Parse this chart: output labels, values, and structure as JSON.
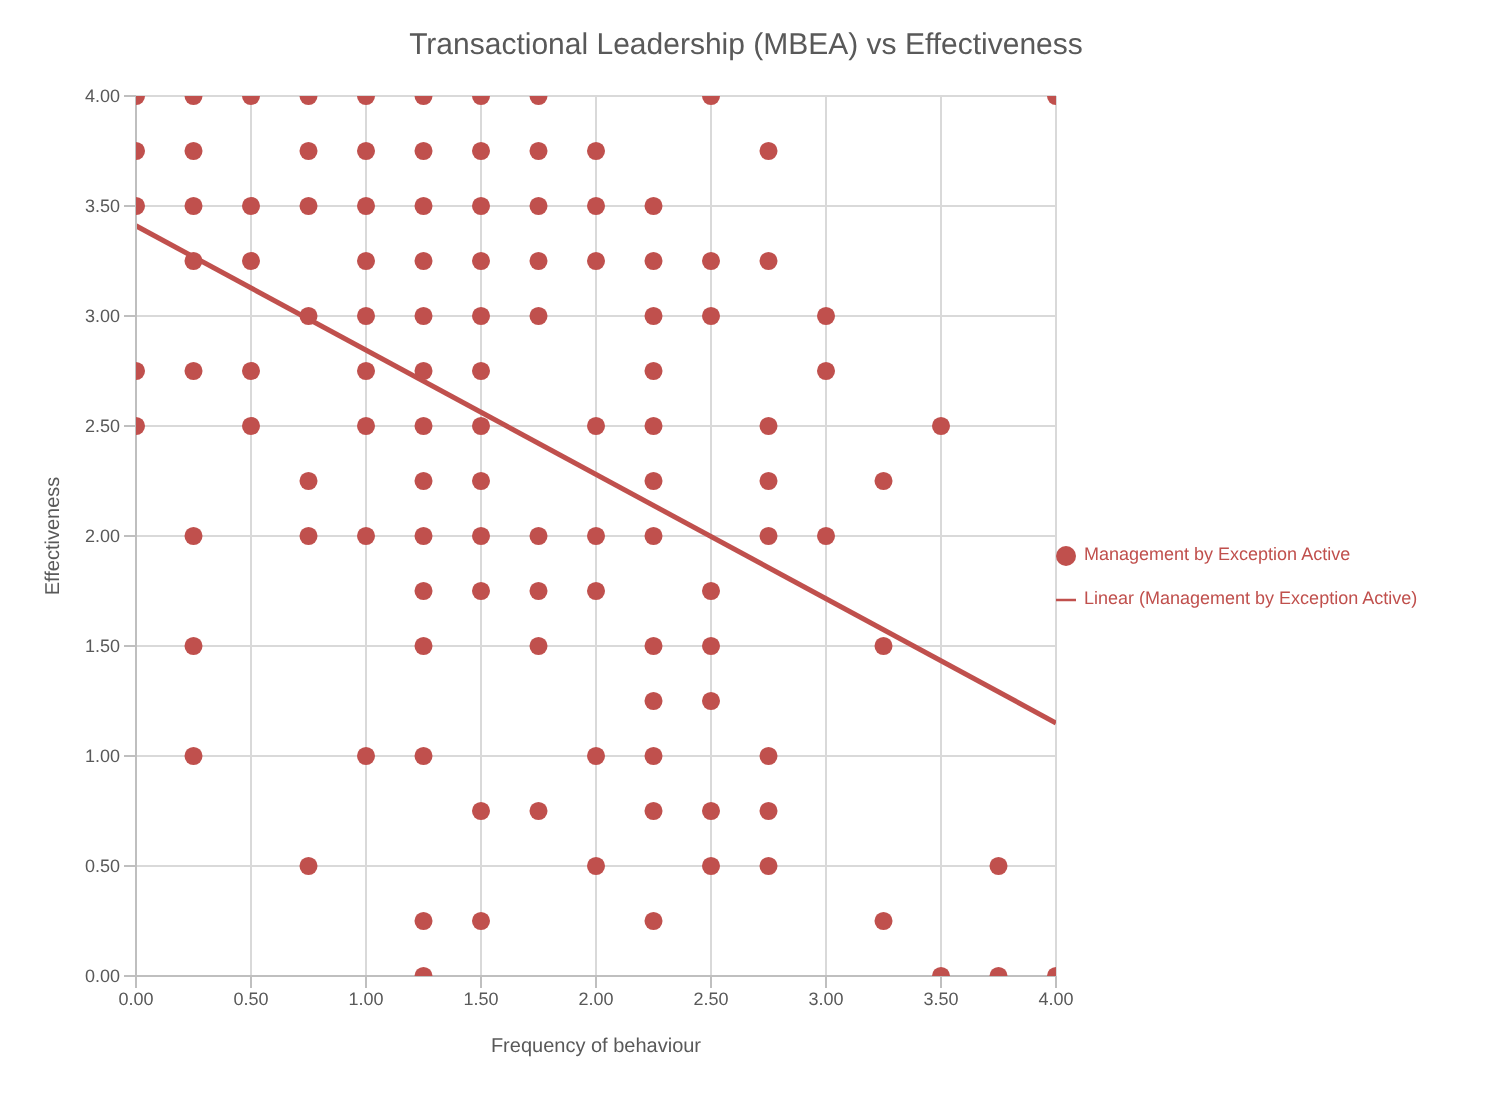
{
  "chart_data": {
    "type": "scatter",
    "title": "Transactional Leadership (MBEA) vs Effectiveness",
    "xlabel": "Frequency of behaviour",
    "ylabel": "Effectiveness",
    "xlim": [
      0,
      4
    ],
    "ylim": [
      0,
      4
    ],
    "xticks": [
      {
        "value": 0,
        "label": "0.00"
      },
      {
        "value": 0.5,
        "label": "0.50"
      },
      {
        "value": 1,
        "label": "1.00"
      },
      {
        "value": 1.5,
        "label": "1.50"
      },
      {
        "value": 2,
        "label": "2.00"
      },
      {
        "value": 2.5,
        "label": "2.50"
      },
      {
        "value": 3,
        "label": "3.00"
      },
      {
        "value": 3.5,
        "label": "3.50"
      },
      {
        "value": 4,
        "label": "4.00"
      }
    ],
    "yticks": [
      {
        "value": 0,
        "label": "0.00"
      },
      {
        "value": 0.5,
        "label": "0.50"
      },
      {
        "value": 1,
        "label": "1.00"
      },
      {
        "value": 1.5,
        "label": "1.50"
      },
      {
        "value": 2,
        "label": "2.00"
      },
      {
        "value": 2.5,
        "label": "2.50"
      },
      {
        "value": 3,
        "label": "3.00"
      },
      {
        "value": 3.5,
        "label": "3.50"
      },
      {
        "value": 4,
        "label": "4.00"
      }
    ],
    "grid": true,
    "legend": "right",
    "series": [
      {
        "name": "Management by Exception Active",
        "color": "#c0504d",
        "marker": "circle",
        "x": [
          0,
          0.25,
          0.5,
          0.75,
          1,
          1.25,
          1.5,
          1.75,
          2.5,
          4,
          0,
          0.25,
          0.75,
          1,
          1.25,
          1.5,
          1.75,
          2,
          2.75,
          0,
          0.25,
          0.5,
          0.75,
          1,
          1.25,
          1.5,
          1.75,
          2,
          2.25,
          0.25,
          0.5,
          1,
          1.25,
          1.5,
          1.75,
          2,
          2.25,
          2.5,
          2.75,
          0.75,
          1,
          1.25,
          1.5,
          1.75,
          2.25,
          2.5,
          3,
          0,
          0.25,
          0.5,
          1,
          1.25,
          1.5,
          2.25,
          3,
          0,
          0.5,
          1,
          1.25,
          1.5,
          2,
          2.25,
          2.75,
          3.5,
          0.75,
          1.25,
          1.5,
          2.25,
          2.75,
          3.25,
          0.25,
          0.75,
          1,
          1.25,
          1.5,
          1.75,
          2,
          2.25,
          2.75,
          3,
          1.25,
          1.5,
          1.75,
          2,
          2.5,
          0.25,
          1.25,
          1.75,
          2.25,
          2.5,
          3.25,
          2.25,
          2.5,
          0.25,
          1,
          1.25,
          2,
          2.25,
          2.75,
          1.5,
          1.75,
          2.25,
          2.5,
          2.75,
          0.75,
          2,
          2.5,
          2.75,
          3.75,
          1.25,
          1.5,
          2.25,
          3.25,
          1.25,
          3.5,
          3.75,
          4
        ],
        "values": [
          4,
          4,
          4,
          4,
          4,
          4,
          4,
          4,
          4,
          4,
          3.75,
          3.75,
          3.75,
          3.75,
          3.75,
          3.75,
          3.75,
          3.75,
          3.75,
          3.5,
          3.5,
          3.5,
          3.5,
          3.5,
          3.5,
          3.5,
          3.5,
          3.5,
          3.5,
          3.25,
          3.25,
          3.25,
          3.25,
          3.25,
          3.25,
          3.25,
          3.25,
          3.25,
          3.25,
          3,
          3,
          3,
          3,
          3,
          3,
          3,
          3,
          2.75,
          2.75,
          2.75,
          2.75,
          2.75,
          2.75,
          2.75,
          2.75,
          2.5,
          2.5,
          2.5,
          2.5,
          2.5,
          2.5,
          2.5,
          2.5,
          2.5,
          2.25,
          2.25,
          2.25,
          2.25,
          2.25,
          2.25,
          2,
          2,
          2,
          2,
          2,
          2,
          2,
          2,
          2,
          2,
          1.75,
          1.75,
          1.75,
          1.75,
          1.75,
          1.5,
          1.5,
          1.5,
          1.5,
          1.5,
          1.5,
          1.25,
          1.25,
          1,
          1,
          1,
          1,
          1,
          1,
          0.75,
          0.75,
          0.75,
          0.75,
          0.75,
          0.5,
          0.5,
          0.5,
          0.5,
          0.5,
          0.25,
          0.25,
          0.25,
          0.25,
          0,
          0,
          0,
          0
        ]
      },
      {
        "type": "line",
        "name": "Linear (Management by Exception Active)",
        "color": "#c0504d",
        "x": [
          0,
          4
        ],
        "values": [
          3.41,
          1.15
        ]
      }
    ]
  }
}
